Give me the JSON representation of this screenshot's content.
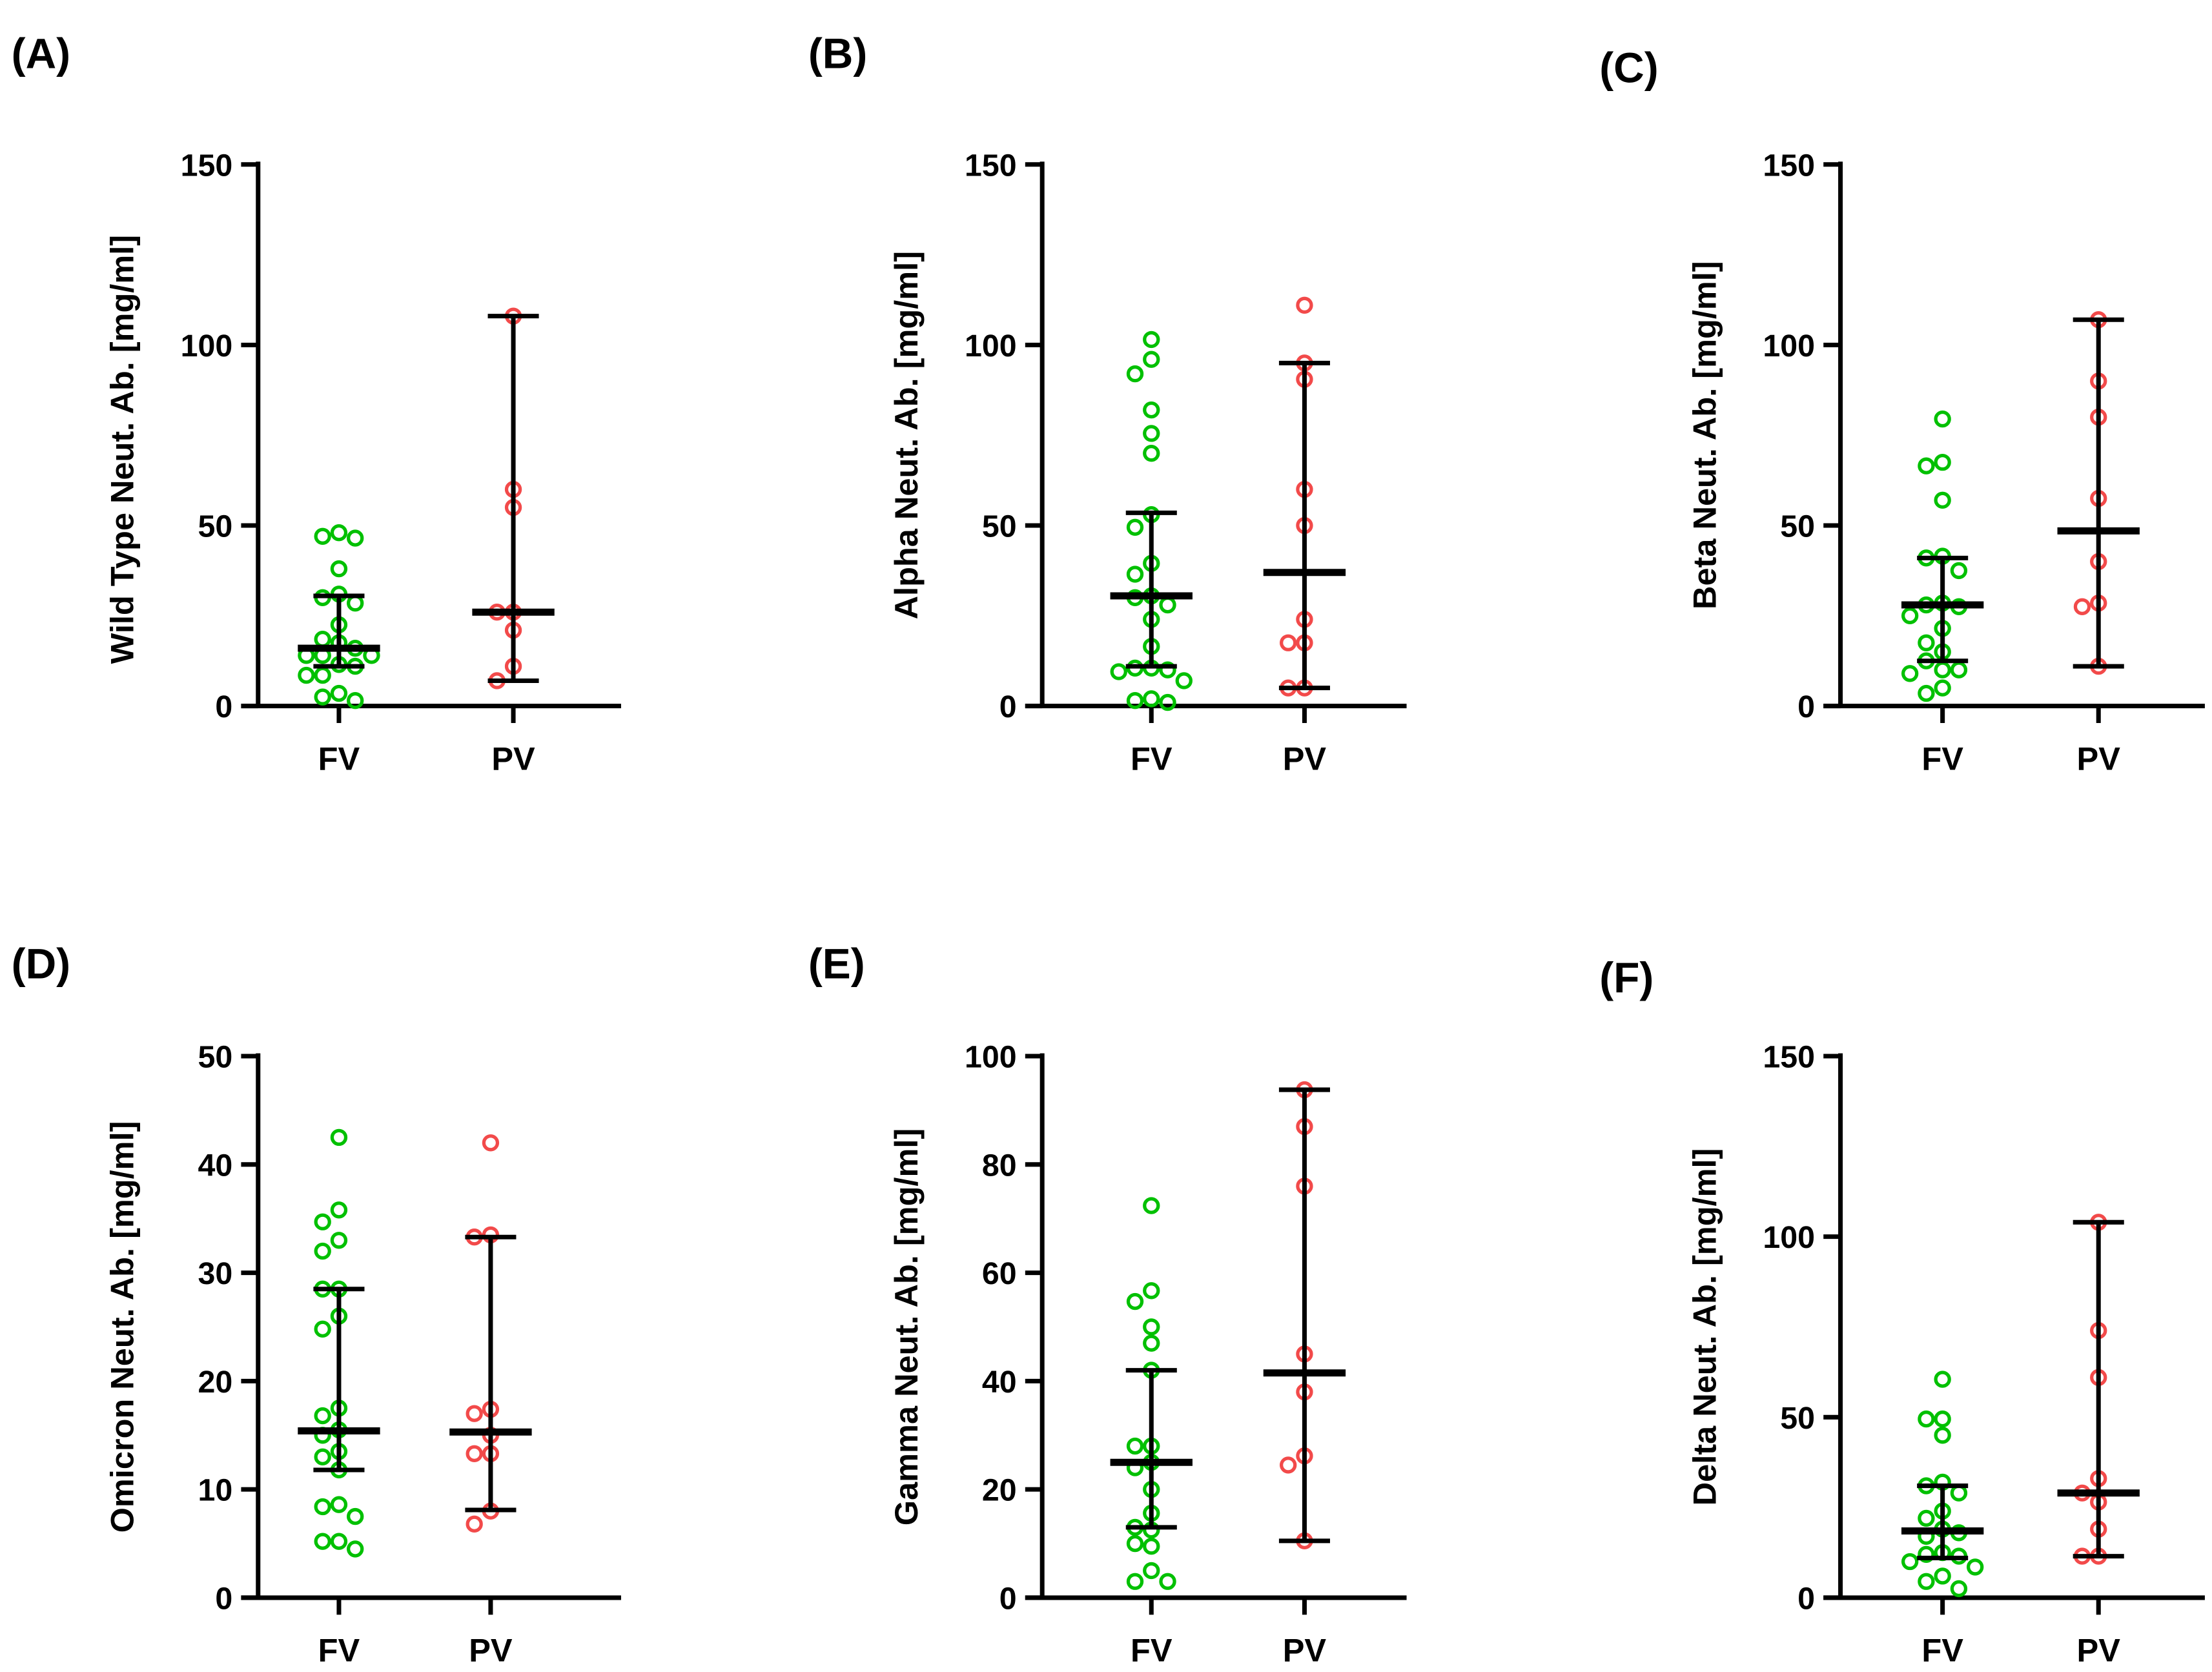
{
  "colors": {
    "FV": "#00c000",
    "PV": "#f24a4a",
    "axis": "#000000"
  },
  "chart_data": [
    {
      "type": "scatter",
      "panel_label": "(A)",
      "ylabel": "Wild Type Neut. Ab. [mg/ml]",
      "ylim": [
        0,
        150
      ],
      "yticks": [
        0,
        50,
        100,
        150
      ],
      "categories": [
        "FV",
        "PV"
      ],
      "series": [
        {
          "name": "FV",
          "values": [
            48,
            47,
            46.5,
            38,
            31,
            30,
            28.5,
            22.5,
            18.5,
            17.5,
            16,
            14,
            14,
            14,
            11.5,
            11,
            8.5,
            8.5,
            3.5,
            2.5,
            1.5
          ],
          "median": 16,
          "error": [
            11,
            30.5
          ]
        },
        {
          "name": "PV",
          "values": [
            108,
            60,
            55,
            26,
            26,
            21,
            11,
            7
          ],
          "median": 26,
          "error": [
            7,
            108
          ]
        }
      ]
    },
    {
      "type": "scatter",
      "panel_label": "(B)",
      "ylabel": "Alpha Neut. Ab. [mg/ml]",
      "ylim": [
        0,
        150
      ],
      "yticks": [
        0,
        50,
        100,
        150
      ],
      "categories": [
        "FV",
        "PV"
      ],
      "series": [
        {
          "name": "FV",
          "values": [
            101.5,
            96,
            92,
            82,
            75.5,
            70,
            53,
            49.5,
            39.5,
            36.5,
            30.5,
            30,
            28,
            24,
            16.5,
            10.5,
            10.5,
            10,
            9.5,
            7,
            2,
            1.5,
            1
          ],
          "median": 30.5,
          "error": [
            11,
            53.5
          ]
        },
        {
          "name": "PV",
          "values": [
            111,
            95,
            90.5,
            60,
            50,
            24,
            17.5,
            17.5,
            5,
            5
          ],
          "median": 37,
          "error": [
            5,
            95
          ]
        }
      ]
    },
    {
      "type": "scatter",
      "panel_label": "(C)",
      "ylabel": "Beta Neut. Ab. [mg/ml]",
      "ylim": [
        0,
        150
      ],
      "yticks": [
        0,
        50,
        100,
        150
      ],
      "categories": [
        "FV",
        "PV"
      ],
      "series": [
        {
          "name": "FV",
          "values": [
            79.5,
            67.5,
            66.5,
            57,
            41.5,
            41,
            37.5,
            28.5,
            28,
            27.5,
            25,
            21.5,
            17.5,
            15,
            12.5,
            10,
            10,
            9,
            5,
            3.5
          ],
          "median": 28,
          "error": [
            12.5,
            41
          ]
        },
        {
          "name": "PV",
          "values": [
            107,
            90,
            80,
            57.5,
            40,
            28.5,
            27.5,
            11
          ],
          "median": 48.5,
          "error": [
            11,
            107
          ]
        }
      ]
    },
    {
      "type": "scatter",
      "panel_label": "(D)",
      "ylabel": "Omicron Neut. Ab. [mg/ml]",
      "ylim": [
        0,
        50
      ],
      "yticks": [
        0,
        10,
        20,
        30,
        40,
        50
      ],
      "categories": [
        "FV",
        "PV"
      ],
      "series": [
        {
          "name": "FV",
          "values": [
            42.5,
            35.8,
            34.7,
            33,
            32,
            28.5,
            28.5,
            26,
            24.8,
            17.5,
            16.8,
            15.5,
            15,
            13.5,
            13,
            11.8,
            8.6,
            8.4,
            7.5,
            5.2,
            5.2,
            4.5
          ],
          "median": 15.4,
          "error": [
            11.8,
            28.5
          ]
        },
        {
          "name": "PV",
          "values": [
            42,
            33.5,
            33.3,
            17.4,
            17,
            15,
            13.3,
            13.3,
            8,
            6.8
          ],
          "median": 15.3,
          "error": [
            8.1,
            33.3
          ]
        }
      ]
    },
    {
      "type": "scatter",
      "panel_label": "(E)",
      "ylabel": "Gamma Neut. Ab. [mg/ml]",
      "ylim": [
        0,
        100
      ],
      "yticks": [
        0,
        20,
        40,
        60,
        80,
        100
      ],
      "categories": [
        "FV",
        "PV"
      ],
      "series": [
        {
          "name": "FV",
          "values": [
            72.4,
            56.7,
            54.7,
            50,
            47,
            42,
            28,
            28,
            25,
            24,
            20,
            15.6,
            13,
            12.5,
            10,
            9.5,
            5,
            3,
            3
          ],
          "median": 25,
          "error": [
            13,
            42
          ]
        },
        {
          "name": "PV",
          "values": [
            93.8,
            87,
            76,
            45,
            38,
            26.2,
            24.5,
            10.5
          ],
          "median": 41.5,
          "error": [
            10.5,
            93.8
          ]
        }
      ]
    },
    {
      "type": "scatter",
      "panel_label": "(F)",
      "ylabel": "Delta Neut. Ab. [mg/ml]",
      "ylim": [
        0,
        150
      ],
      "yticks": [
        0,
        50,
        100,
        150
      ],
      "categories": [
        "FV",
        "PV"
      ],
      "series": [
        {
          "name": "FV",
          "values": [
            60.5,
            49.5,
            49.5,
            45,
            32,
            31,
            29,
            24,
            22,
            19,
            18,
            17,
            12.5,
            12,
            11.5,
            10,
            8.5,
            6,
            4.5,
            2.5
          ],
          "median": 18.5,
          "error": [
            11,
            31
          ]
        },
        {
          "name": "PV",
          "values": [
            104,
            74,
            61,
            33,
            29,
            26.5,
            19,
            11.5,
            11.5
          ],
          "median": 29,
          "error": [
            11.5,
            104
          ]
        }
      ]
    }
  ]
}
